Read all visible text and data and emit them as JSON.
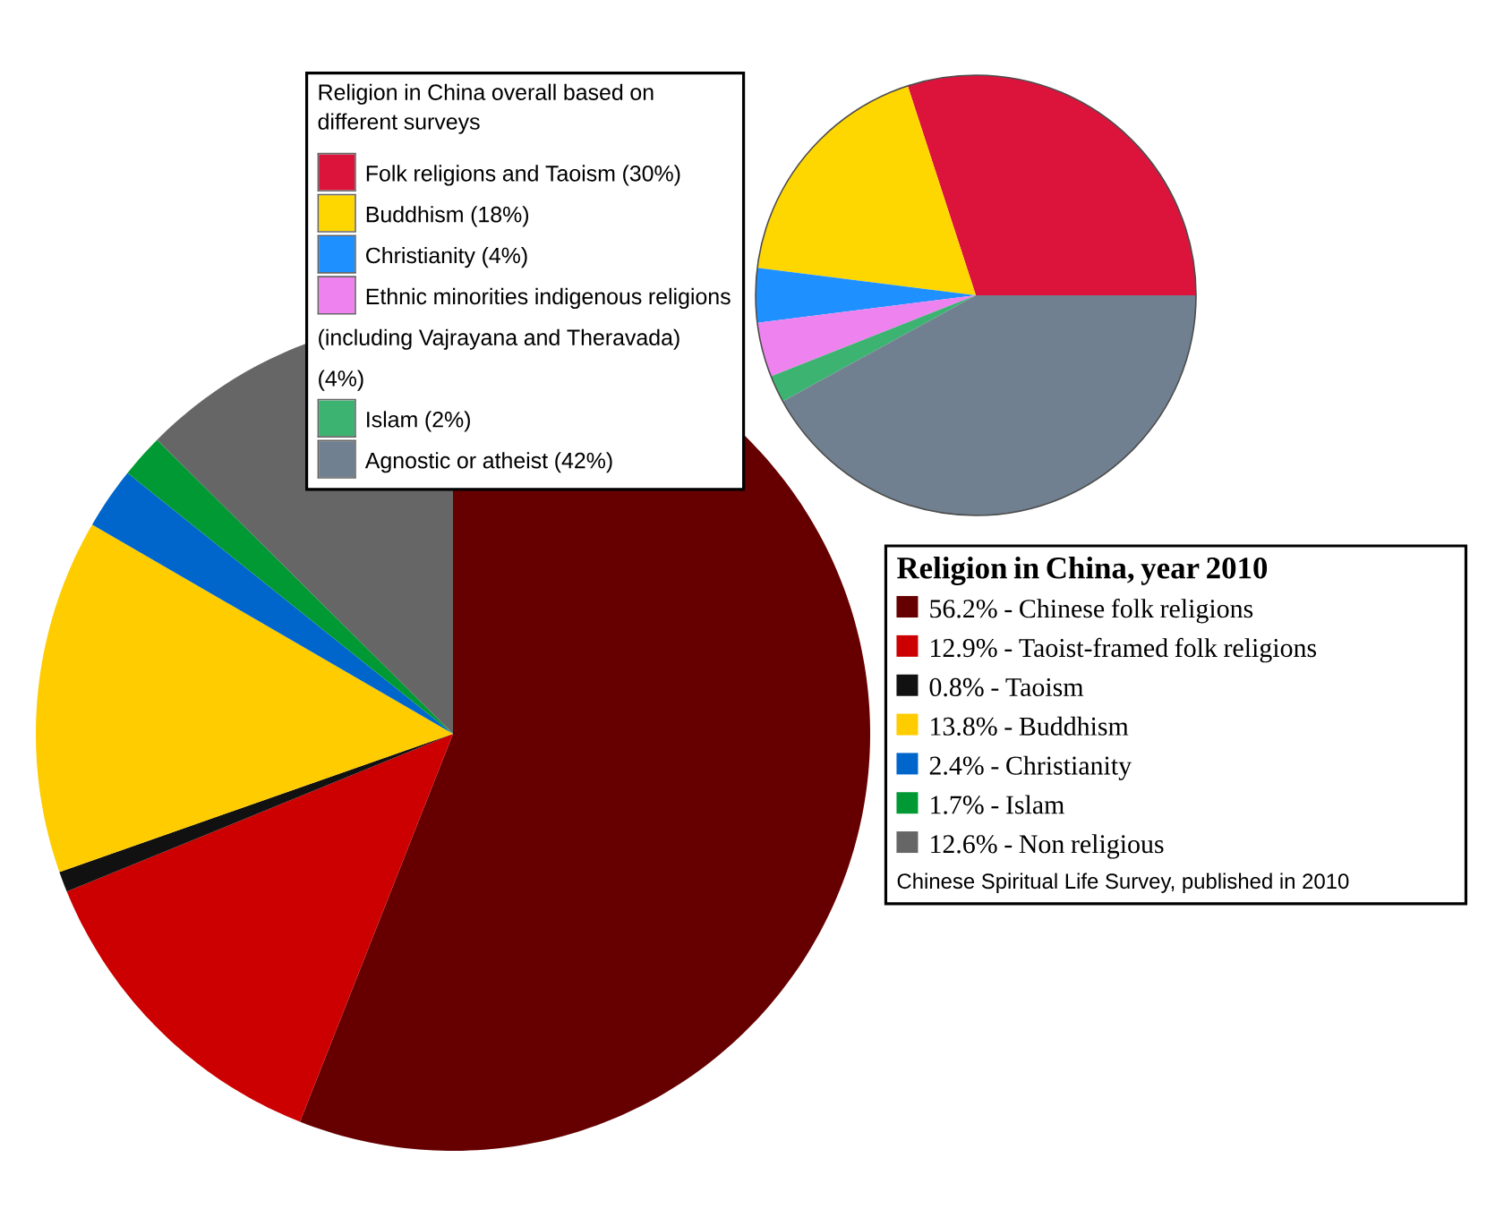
{
  "chart_data": [
    {
      "type": "pie",
      "title": "Religion in China overall based on different surveys",
      "categories": [
        "Folk religions and Taoism (30%)",
        "Buddhism (18%)",
        "Christianity (4%)",
        "Ethnic minorities indigenous religions (including Vajrayana and Theravada) (4%)",
        "Islam (2%)",
        "Agnostic or atheist (42%)"
      ],
      "values": [
        30,
        18,
        4,
        4,
        2,
        42
      ],
      "colors": [
        "#dc143c",
        "#ffd700",
        "#1e90ff",
        "#ee82ee",
        "#3cb371",
        "#708090"
      ],
      "legend": "left"
    },
    {
      "type": "pie",
      "title": "Religion in China, year 2010",
      "categories": [
        "56.2% - Chinese folk religions",
        "12.9% - Taoist-framed folk religions",
        "0.8% - Taoism",
        "13.8% - Buddhism",
        "2.4% - Christianity",
        "1.7% - Islam",
        "12.6% - Non religious"
      ],
      "values": [
        56.2,
        12.9,
        0.8,
        13.8,
        2.4,
        1.7,
        12.6
      ],
      "colors": [
        "#660000",
        "#cc0000",
        "#111111",
        "#ffcc00",
        "#0066cc",
        "#009933",
        "#666666"
      ],
      "legend": "right",
      "annotations": [
        "Chinese Spiritual Life Survey, published in 2010"
      ]
    }
  ]
}
